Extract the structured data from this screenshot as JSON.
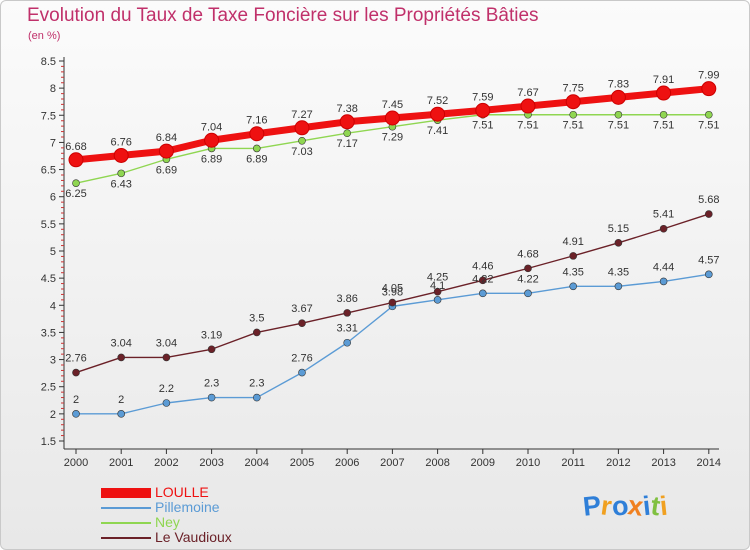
{
  "title": "Evolution du Taux de Taxe Foncière sur les Propriétés Bâties",
  "unit": "(en %)",
  "chart_data": {
    "type": "line",
    "title": "Evolution du Taux de Taxe Foncière sur les Propriétés Bâties",
    "ylabel": "(en %)",
    "xlabel": "",
    "ylim": [
      1.5,
      8.5
    ],
    "yticks": [
      "1.5",
      "2",
      "2.5",
      "3",
      "3.5",
      "4",
      "4.5",
      "5",
      "5.5",
      "6",
      "6.5",
      "7",
      "7.5",
      "8",
      "8.5"
    ],
    "categories": [
      "2000",
      "2001",
      "2002",
      "2003",
      "2004",
      "2005",
      "2006",
      "2007",
      "2008",
      "2009",
      "2010",
      "2011",
      "2012",
      "2013",
      "2014"
    ],
    "grid": false,
    "legend": "bottom-left",
    "series": [
      {
        "name": "LOULLE",
        "color": "#ee1111",
        "values": [
          6.68,
          6.76,
          6.84,
          7.04,
          7.16,
          7.27,
          7.38,
          7.45,
          7.52,
          7.59,
          7.67,
          7.75,
          7.83,
          7.91,
          7.99
        ],
        "labels": [
          "6.68",
          "6.76",
          "6.84",
          "7.04",
          "7.16",
          "7.27",
          "7.38",
          "7.45",
          "7.52",
          "7.59",
          "7.67",
          "7.75",
          "7.83",
          "7.91",
          "7.99"
        ]
      },
      {
        "name": "Pillemoine",
        "color": "#5b9bd5",
        "values": [
          2,
          2,
          2.2,
          2.3,
          2.3,
          2.76,
          3.31,
          3.98,
          4.1,
          4.22,
          4.22,
          4.35,
          4.35,
          4.44,
          4.57
        ],
        "labels": [
          "2",
          "2",
          "2.2",
          "2.3",
          "2.3",
          "2.76",
          "3.31",
          "3.98",
          "4.1",
          "4.22",
          "4.22",
          "4.35",
          "4.35",
          "4.44",
          "4.57"
        ]
      },
      {
        "name": "Ney",
        "color": "#8fd651",
        "values": [
          6.25,
          6.43,
          6.69,
          6.89,
          6.89,
          7.03,
          7.17,
          7.29,
          7.41,
          7.51,
          7.51,
          7.51,
          7.51,
          7.51,
          7.51
        ],
        "labels": [
          "6.25",
          "6.43",
          "6.69",
          "6.89",
          "6.89",
          "7.03",
          "7.17",
          "7.29",
          "7.41",
          "7.51",
          "7.51",
          "7.51",
          "7.51",
          "7.51",
          "7.51"
        ]
      },
      {
        "name": "Le Vaudioux",
        "color": "#6b2128",
        "values": [
          2.76,
          3.04,
          3.04,
          3.19,
          3.5,
          3.67,
          3.86,
          4.05,
          4.25,
          4.46,
          4.68,
          4.91,
          5.15,
          5.41,
          5.68
        ],
        "labels": [
          "2.76",
          "3.04",
          "3.04",
          "3.19",
          "3.5",
          "3.67",
          "3.86",
          "4.05",
          "4.25",
          "4.46",
          "4.68",
          "4.91",
          "5.15",
          "5.41",
          "5.68"
        ]
      }
    ]
  },
  "logo": {
    "letters": [
      "P",
      "r",
      "o",
      "x",
      "i",
      "t",
      "i"
    ],
    "colors": [
      "#2f7fd8",
      "#f0a020",
      "#2f7fd8",
      "#f08020",
      "#2f7fd8",
      "#80c040",
      "#f0a020"
    ]
  }
}
